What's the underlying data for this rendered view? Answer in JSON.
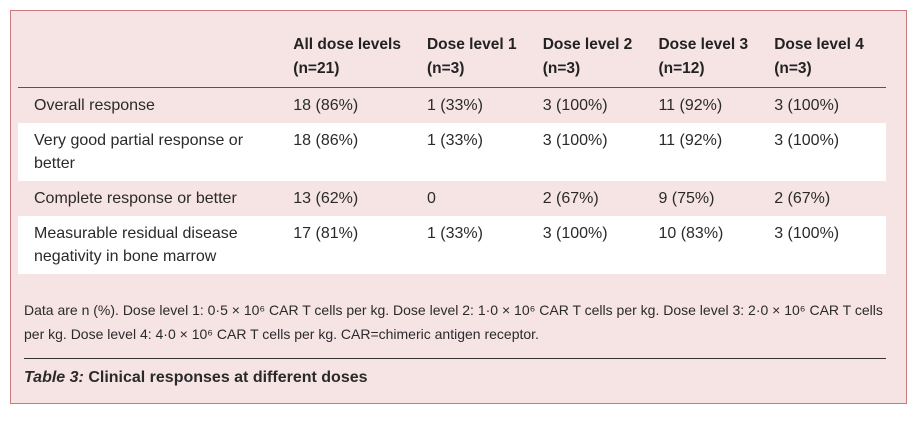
{
  "table": {
    "columns": [
      {
        "line1": "All dose levels",
        "line2": "(n=21)"
      },
      {
        "line1": "Dose level 1",
        "line2": "(n=3)"
      },
      {
        "line1": "Dose level 2",
        "line2": "(n=3)"
      },
      {
        "line1": "Dose level 3",
        "line2": "(n=12)"
      },
      {
        "line1": "Dose level 4",
        "line2": "(n=3)"
      }
    ],
    "rows": [
      {
        "label": "Overall response",
        "values": [
          "18 (86%)",
          "1 (33%)",
          "3 (100%)",
          "11 (92%)",
          "3 (100%)"
        ]
      },
      {
        "label": "Very good partial response or better",
        "values": [
          "18 (86%)",
          "1 (33%)",
          "3 (100%)",
          "11 (92%)",
          "3 (100%)"
        ]
      },
      {
        "label": "Complete response or better",
        "values": [
          "13 (62%)",
          "0",
          "2 (67%)",
          "9 (75%)",
          "2 (67%)"
        ]
      },
      {
        "label": "Measurable residual disease negativity in bone marrow",
        "values": [
          "17 (81%)",
          "1 (33%)",
          "3 (100%)",
          "10 (83%)",
          "3 (100%)"
        ]
      }
    ]
  },
  "footnote": "Data are n (%). Dose level 1: 0·5 × 10⁶ CAR T cells per kg. Dose level 2: 1·0 × 10⁶ CAR T cells per kg. Dose level 3: 2·0 × 10⁶ CAR T cells per kg. Dose level 4: 4·0 × 10⁶ CAR T cells per kg. CAR=chimeric antigen receptor.",
  "caption": {
    "label": "Table 3:",
    "text": " Clinical responses at different doses"
  },
  "colors": {
    "panel_background": "#f6e4e5",
    "panel_border": "#c97b80"
  }
}
